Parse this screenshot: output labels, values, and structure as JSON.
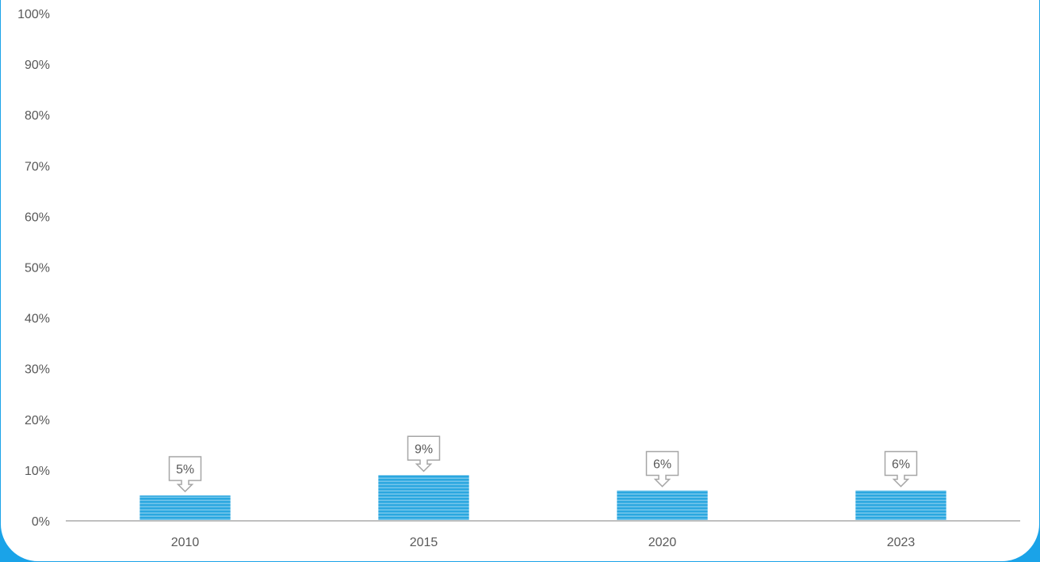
{
  "chart_data": {
    "type": "bar",
    "categories": [
      "2010",
      "2015",
      "2020",
      "2023"
    ],
    "values": [
      5,
      9,
      6,
      6
    ],
    "y_tick_labels": [
      "0%",
      "10%",
      "20%",
      "30%",
      "40%",
      "50%",
      "60%",
      "70%",
      "80%",
      "90%",
      "100%"
    ],
    "data_labels": [
      "5%",
      "9%",
      "6%",
      "6%"
    ],
    "title": "",
    "xlabel": "",
    "ylabel": "",
    "ylim": [
      0,
      100
    ],
    "grid": false,
    "legend": "none",
    "colors": {
      "bar": "#2aa7e0",
      "bar_stripe": "#ffffff",
      "axis": "#bfbfbf",
      "text": "#595959",
      "callout_border": "#a6a6a6",
      "frame": "#1aa3e8"
    }
  }
}
